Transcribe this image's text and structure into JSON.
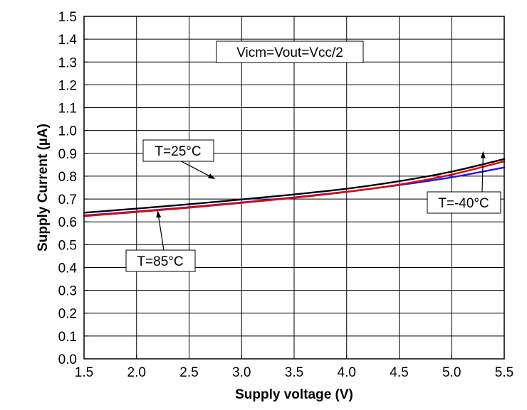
{
  "chart_data": {
    "type": "line",
    "title": "",
    "xlabel": "Supply voltage (V)",
    "ylabel": "Supply Current (µA)",
    "xlim": [
      1.5,
      5.5
    ],
    "ylim": [
      0.0,
      1.5
    ],
    "xticks": [
      "1.5",
      "2.0",
      "2.5",
      "3.0",
      "3.5",
      "4.0",
      "4.5",
      "5.0",
      "5.5"
    ],
    "yticks": [
      "0.0",
      "0.1",
      "0.2",
      "0.3",
      "0.4",
      "0.5",
      "0.6",
      "0.7",
      "0.8",
      "0.9",
      "1.0",
      "1.1",
      "1.2",
      "1.3",
      "1.4",
      "1.5"
    ],
    "grid": true,
    "series": [
      {
        "name": "T=25°C",
        "color": "#000000",
        "x": [
          1.5,
          2.0,
          2.5,
          3.0,
          3.5,
          4.0,
          4.5,
          5.0,
          5.5
        ],
        "y": [
          0.64,
          0.658,
          0.677,
          0.698,
          0.72,
          0.745,
          0.778,
          0.82,
          0.875
        ]
      },
      {
        "name": "T=85°C",
        "color": "#e00000",
        "x": [
          1.5,
          2.0,
          2.5,
          3.0,
          3.5,
          4.0,
          4.5,
          5.0,
          5.5
        ],
        "y": [
          0.625,
          0.643,
          0.662,
          0.683,
          0.705,
          0.731,
          0.763,
          0.807,
          0.865
        ]
      },
      {
        "name": "T=-40°C",
        "color": "#1a1aff",
        "x": [
          1.5,
          2.0,
          2.5,
          3.0,
          3.5,
          4.0,
          4.5,
          5.0,
          5.5
        ],
        "y": [
          0.628,
          0.645,
          0.664,
          0.685,
          0.707,
          0.732,
          0.761,
          0.795,
          0.838
        ]
      }
    ],
    "annotations": [
      {
        "text": "Vicm=Vout=Vcc/2",
        "anchor": "top-center"
      },
      {
        "text": "T=25°C",
        "points_to": "T=25°C",
        "x": 2.75,
        "y": 0.787
      },
      {
        "text": "T=85°C",
        "points_to": "T=85°C",
        "x": 2.2,
        "y": 0.65
      },
      {
        "text": "T=-40°C",
        "points_to": "T=-40°C",
        "x": 5.3,
        "y": 0.91
      }
    ]
  }
}
